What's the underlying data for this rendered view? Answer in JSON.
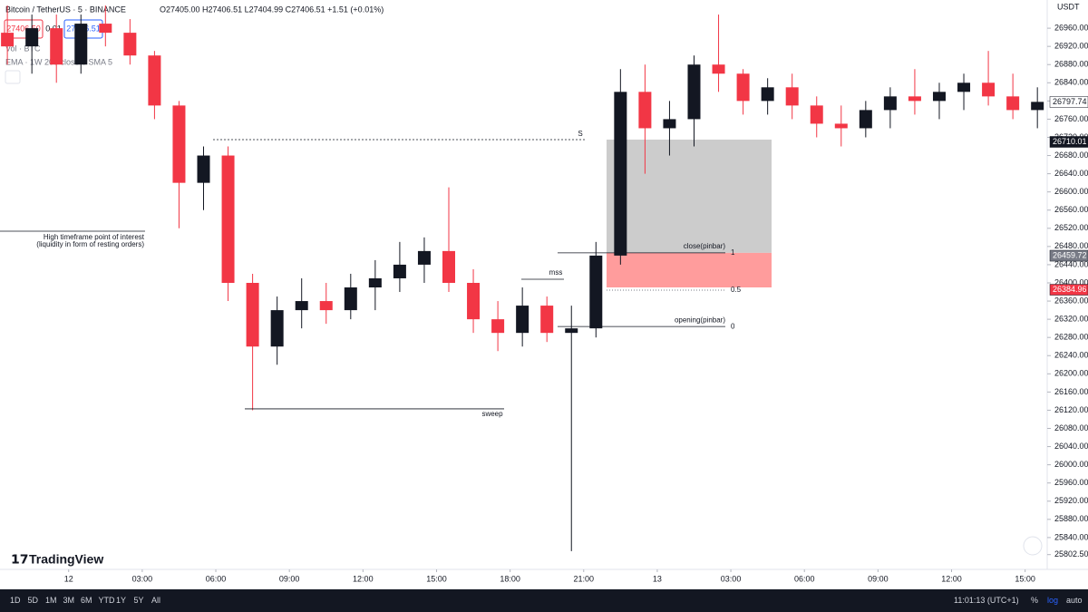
{
  "header": {
    "symbol": "Bitcoin / TetherUS · 5 · BINANCE",
    "ohlc": "O27405.00 H27406.51 L27404.99 C27406.51 +1.51 (+0.01%)",
    "sell": "27406.50",
    "spread": "0.01",
    "buy": "27406.51",
    "vol": "Vol · BTC",
    "ema": "EMA · 1W 200 close 0 SMA 5",
    "currency": "USDT",
    "logo": "TradingView"
  },
  "toolbar": {
    "ranges": [
      "1D",
      "5D",
      "1M",
      "3M",
      "6M",
      "YTD",
      "1Y",
      "5Y",
      "All"
    ],
    "clock": "11:01:13 (UTC+1)",
    "percent": "%",
    "log": "log",
    "auto": "auto"
  },
  "chart_data": {
    "type": "candlestick",
    "up_color": "#131722",
    "down_color": "#f23645",
    "x": [
      -2.5,
      -1.5,
      -0.5,
      0.5,
      1.5,
      2.5,
      3.5,
      4.5,
      5.5,
      6.5,
      7.5,
      8.5,
      9.5,
      10.5,
      11.5,
      12.5,
      13.5,
      14.5,
      15.5,
      16.5,
      17.5,
      18.5,
      19.5,
      20.5,
      21.5,
      22.5,
      23.5,
      24.5,
      25.5,
      26.5,
      27.5,
      28.5,
      29.5,
      30.5,
      31.5,
      32.5,
      33.5,
      34.5,
      35.5,
      36.5,
      37.5,
      38.5,
      39.5
    ],
    "ohlc": [
      [
        26950,
        27010,
        26880,
        26920
      ],
      [
        26920,
        26990,
        26860,
        26960
      ],
      [
        26960,
        26990,
        26840,
        26880
      ],
      [
        26880,
        26990,
        26860,
        26970
      ],
      [
        26970,
        27010,
        26920,
        26950
      ],
      [
        26950,
        26980,
        26880,
        26900
      ],
      [
        26900,
        26910,
        26760,
        26790
      ],
      [
        26790,
        26800,
        26520,
        26620
      ],
      [
        26620,
        26700,
        26560,
        26680
      ],
      [
        26680,
        26700,
        26360,
        26400
      ],
      [
        26400,
        26420,
        26120,
        26260
      ],
      [
        26260,
        26370,
        26220,
        26340
      ],
      [
        26340,
        26410,
        26300,
        26360
      ],
      [
        26360,
        26400,
        26310,
        26340
      ],
      [
        26340,
        26420,
        26320,
        26390
      ],
      [
        26390,
        26450,
        26340,
        26410
      ],
      [
        26410,
        26490,
        26380,
        26440
      ],
      [
        26440,
        26500,
        26400,
        26470
      ],
      [
        26470,
        26610,
        26380,
        26400
      ],
      [
        26400,
        26430,
        26290,
        26320
      ],
      [
        26320,
        26360,
        26250,
        26290
      ],
      [
        26290,
        26390,
        26260,
        26350
      ],
      [
        26350,
        26370,
        26270,
        26290
      ],
      [
        26290,
        26350,
        25810,
        26300
      ],
      [
        26300,
        26490,
        26280,
        26460
      ],
      [
        26460,
        26870,
        26440,
        26820
      ],
      [
        26820,
        26880,
        26640,
        26740
      ],
      [
        26740,
        26800,
        26680,
        26760
      ],
      [
        26760,
        26900,
        26700,
        26880
      ],
      [
        26880,
        26990,
        26820,
        26860
      ],
      [
        26860,
        26870,
        26770,
        26800
      ],
      [
        26800,
        26850,
        26770,
        26830
      ],
      [
        26830,
        26860,
        26760,
        26790
      ],
      [
        26790,
        26810,
        26720,
        26750
      ],
      [
        26750,
        26790,
        26700,
        26740
      ],
      [
        26740,
        26800,
        26720,
        26780
      ],
      [
        26780,
        26830,
        26740,
        26810
      ],
      [
        26810,
        26870,
        26770,
        26800
      ],
      [
        26800,
        26840,
        26760,
        26820
      ],
      [
        26820,
        26860,
        26780,
        26840
      ],
      [
        26840,
        26910,
        26790,
        26810
      ],
      [
        26810,
        26860,
        26760,
        26780
      ],
      [
        26780,
        26830,
        26740,
        26798
      ]
    ],
    "xlim": [
      -2.8,
      39.9
    ],
    "ylim": [
      25770,
      27022
    ],
    "xticks": [
      {
        "value": 0,
        "label": "12"
      },
      {
        "value": 3,
        "label": "03:00"
      },
      {
        "value": 6,
        "label": "06:00"
      },
      {
        "value": 9,
        "label": "09:00"
      },
      {
        "value": 12,
        "label": "12:00"
      },
      {
        "value": 15,
        "label": "15:00"
      },
      {
        "value": 18,
        "label": "18:00"
      },
      {
        "value": 21,
        "label": "21:00"
      },
      {
        "value": 24,
        "label": "13"
      },
      {
        "value": 27,
        "label": "03:00"
      },
      {
        "value": 30,
        "label": "06:00"
      },
      {
        "value": 33,
        "label": "09:00"
      },
      {
        "value": 36,
        "label": "12:00"
      },
      {
        "value": 39,
        "label": "15:00"
      }
    ],
    "yticks": [
      {
        "value": 25802.5,
        "label": "25802.50"
      },
      {
        "value": 25840,
        "label": "25840.00"
      },
      {
        "value": 25880,
        "label": "25880.00"
      },
      {
        "value": 25920,
        "label": "25920.00"
      },
      {
        "value": 25960,
        "label": "25960.00"
      },
      {
        "value": 26000,
        "label": "26000.00"
      },
      {
        "value": 26040,
        "label": "26040.00"
      },
      {
        "value": 26080,
        "label": "26080.00"
      },
      {
        "value": 26120,
        "label": "26120.00"
      },
      {
        "value": 26160,
        "label": "26160.00"
      },
      {
        "value": 26200,
        "label": "26200.00"
      },
      {
        "value": 26240,
        "label": "26240.00"
      },
      {
        "value": 26280,
        "label": "26280.00"
      },
      {
        "value": 26320,
        "label": "26320.00"
      },
      {
        "value": 26360,
        "label": "26360.00"
      },
      {
        "value": 26400,
        "label": "26400.00"
      },
      {
        "value": 26440,
        "label": "26440.00"
      },
      {
        "value": 26480,
        "label": "26480.00"
      },
      {
        "value": 26520,
        "label": "26520.00"
      },
      {
        "value": 26560,
        "label": "26560.00"
      },
      {
        "value": 26600,
        "label": "26600.00"
      },
      {
        "value": 26640,
        "label": "26640.00"
      },
      {
        "value": 26680,
        "label": "26680.00"
      },
      {
        "value": 26720,
        "label": "26720.00"
      },
      {
        "value": 26760,
        "label": "26760.00"
      },
      {
        "value": 26800,
        "label": "26800.00"
      },
      {
        "value": 26840,
        "label": "26840.00"
      },
      {
        "value": 26880,
        "label": "26880.00"
      },
      {
        "value": 26920,
        "label": "26920.00"
      },
      {
        "value": 26960,
        "label": "26960.00"
      }
    ],
    "levels": [
      {
        "label": "S",
        "value": 26715
      },
      {
        "label": "mss",
        "value": 26408
      },
      {
        "label": "sweep",
        "value": 26123
      },
      {
        "label": "close(pinbar)",
        "value": 26466
      },
      {
        "label": "opening(pinbar)",
        "value": 26304
      }
    ],
    "fib_labels": [
      {
        "label": "1",
        "value": 26466
      },
      {
        "label": "0.5",
        "value": 26384
      },
      {
        "label": "0",
        "value": 26304
      }
    ],
    "zones": [
      {
        "top": 26715,
        "bottom": 26466,
        "color": "#cccccc"
      },
      {
        "top": 26466,
        "bottom": 26390,
        "color": "#ff9c9c"
      }
    ],
    "note": [
      "High timeframe point of interest",
      "(liquidity in form of resting orders)"
    ],
    "price_tags": [
      {
        "value": 26797.74,
        "bg": "#ffffff",
        "fg": "#131722"
      },
      {
        "value": 26710.01,
        "bg": "#131722",
        "fg": "#ffffff"
      },
      {
        "value": 26459.72,
        "bg": "#787b86",
        "fg": "#ffffff"
      },
      {
        "value": 26384.96,
        "bg": "#f23645",
        "fg": "#ffffff"
      }
    ]
  }
}
